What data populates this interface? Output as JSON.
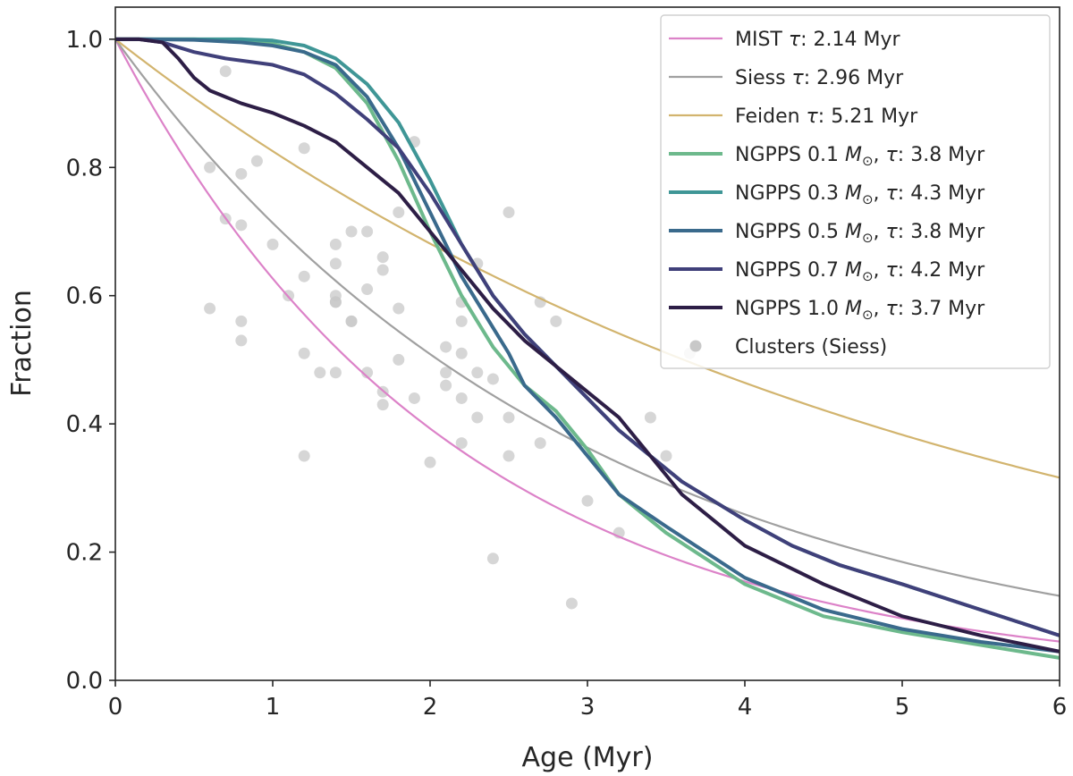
{
  "chart_data": {
    "type": "line",
    "title": "",
    "xlabel": "Age (Myr)",
    "ylabel": "Fraction",
    "xlim": [
      0,
      6
    ],
    "ylim": [
      0,
      1.05
    ],
    "xticks": [
      "0",
      "1",
      "2",
      "3",
      "4",
      "5",
      "6"
    ],
    "yticks": [
      "0.0",
      "0.2",
      "0.4",
      "0.6",
      "0.8",
      "1.0"
    ],
    "legend_position": "top-right",
    "series": [
      {
        "name": "MIST",
        "label": "MIST τ: 2.14 Myr",
        "legend_prefix": "MIST ",
        "legend_suffix": ": 2.14 Myr",
        "kind": "exponential",
        "tau": 2.14,
        "color": "#dc82c8",
        "width": "thin"
      },
      {
        "name": "Siess",
        "label": "Siess τ: 2.96 Myr",
        "legend_prefix": "Siess ",
        "legend_suffix": ": 2.96 Myr",
        "kind": "exponential",
        "tau": 2.96,
        "color": "#a0a0a0",
        "width": "thin"
      },
      {
        "name": "Feiden",
        "label": "Feiden τ: 5.21 Myr",
        "legend_prefix": "Feiden ",
        "legend_suffix": ": 5.21 Myr",
        "kind": "exponential",
        "tau": 5.21,
        "color": "#d2b46e",
        "width": "thin"
      },
      {
        "name": "NGPPS 0.1",
        "label": "NGPPS 0.1 M⊙, τ: 3.8 Myr",
        "legend_prefix": "NGPPS 0.1 ",
        "legend_suffix": ": 3.8 Myr",
        "kind": "sampled",
        "color": "#6db98c",
        "width": "thick",
        "x": [
          0,
          0.2,
          0.5,
          0.8,
          1.0,
          1.2,
          1.4,
          1.6,
          1.8,
          2.0,
          2.1,
          2.2,
          2.3,
          2.4,
          2.5,
          2.6,
          2.7,
          2.8,
          3.0,
          3.2,
          3.5,
          4.0,
          4.5,
          5.0,
          5.5,
          6.0
        ],
        "y": [
          1.0,
          1.0,
          1.0,
          0.998,
          0.993,
          0.98,
          0.955,
          0.9,
          0.81,
          0.7,
          0.65,
          0.6,
          0.56,
          0.52,
          0.49,
          0.46,
          0.44,
          0.42,
          0.36,
          0.29,
          0.23,
          0.15,
          0.1,
          0.075,
          0.055,
          0.035
        ]
      },
      {
        "name": "NGPPS 0.3",
        "label": "NGPPS 0.3 M⊙, τ: 4.3 Myr",
        "legend_prefix": "NGPPS 0.3 ",
        "legend_suffix": ": 4.3 Myr",
        "kind": "sampled",
        "color": "#3f9696",
        "width": "thick",
        "x": [
          0,
          0.2,
          0.5,
          0.8,
          1.0,
          1.2,
          1.4,
          1.6,
          1.8,
          2.0,
          2.2,
          2.4,
          2.6,
          2.8,
          3.0,
          3.2,
          3.4,
          3.6,
          3.8,
          4.0,
          4.3,
          4.6,
          5.0,
          5.5,
          6.0
        ],
        "y": [
          1.0,
          1.0,
          1.0,
          1.0,
          0.998,
          0.99,
          0.97,
          0.93,
          0.87,
          0.78,
          0.68,
          0.6,
          0.54,
          0.49,
          0.44,
          0.39,
          0.35,
          0.31,
          0.28,
          0.25,
          0.21,
          0.18,
          0.15,
          0.11,
          0.07
        ]
      },
      {
        "name": "NGPPS 0.5",
        "label": "NGPPS 0.5 M⊙, τ: 3.8 Myr",
        "legend_prefix": "NGPPS 0.5 ",
        "legend_suffix": ": 3.8 Myr",
        "kind": "sampled",
        "color": "#3a6a8c",
        "width": "thick",
        "x": [
          0,
          0.2,
          0.5,
          0.8,
          1.0,
          1.2,
          1.4,
          1.6,
          1.8,
          2.0,
          2.2,
          2.4,
          2.5,
          2.6,
          2.8,
          3.0,
          3.2,
          3.5,
          4.0,
          4.5,
          5.0,
          5.5,
          6.0
        ],
        "y": [
          1.0,
          1.0,
          0.999,
          0.995,
          0.99,
          0.98,
          0.96,
          0.91,
          0.83,
          0.73,
          0.63,
          0.55,
          0.51,
          0.46,
          0.41,
          0.35,
          0.29,
          0.24,
          0.16,
          0.11,
          0.08,
          0.06,
          0.045
        ]
      },
      {
        "name": "NGPPS 0.7",
        "label": "NGPPS 0.7 M⊙, τ: 4.2 Myr",
        "legend_prefix": "NGPPS 0.7 ",
        "legend_suffix": ": 4.2 Myr",
        "kind": "sampled",
        "color": "#40407a",
        "width": "thick",
        "x": [
          0,
          0.15,
          0.3,
          0.5,
          0.7,
          1.0,
          1.2,
          1.4,
          1.6,
          1.8,
          2.0,
          2.2,
          2.4,
          2.6,
          2.8,
          3.0,
          3.2,
          3.4,
          3.6,
          3.8,
          4.0,
          4.3,
          4.6,
          5.0,
          5.5,
          6.0
        ],
        "y": [
          1.0,
          1.0,
          0.995,
          0.98,
          0.97,
          0.96,
          0.945,
          0.915,
          0.875,
          0.83,
          0.76,
          0.68,
          0.6,
          0.54,
          0.49,
          0.44,
          0.39,
          0.35,
          0.31,
          0.28,
          0.25,
          0.21,
          0.18,
          0.15,
          0.11,
          0.07
        ]
      },
      {
        "name": "NGPPS 1.0",
        "label": "NGPPS 1.0 M⊙, τ: 3.7 Myr",
        "legend_prefix": "NGPPS 1.0 ",
        "legend_suffix": ": 3.7 Myr",
        "kind": "sampled",
        "color": "#2d1e46",
        "width": "thick",
        "x": [
          0,
          0.15,
          0.3,
          0.4,
          0.5,
          0.6,
          0.8,
          1.0,
          1.2,
          1.4,
          1.6,
          1.8,
          2.0,
          2.2,
          2.4,
          2.6,
          2.8,
          3.0,
          3.2,
          3.4,
          3.6,
          3.8,
          4.0,
          4.5,
          5.0,
          5.5,
          6.0
        ],
        "y": [
          1.0,
          1.0,
          0.995,
          0.97,
          0.94,
          0.92,
          0.9,
          0.885,
          0.865,
          0.84,
          0.8,
          0.76,
          0.7,
          0.64,
          0.58,
          0.53,
          0.49,
          0.45,
          0.41,
          0.35,
          0.29,
          0.25,
          0.21,
          0.15,
          0.1,
          0.07,
          0.045
        ]
      }
    ],
    "scatter": {
      "name": "Clusters (Siess)",
      "label": "Clusters (Siess)",
      "color": "#c8c8c8",
      "x": [
        0.6,
        0.6,
        0.7,
        0.7,
        0.8,
        0.8,
        0.8,
        0.8,
        0.9,
        1.0,
        1.1,
        1.2,
        1.2,
        1.2,
        1.2,
        1.3,
        1.4,
        1.4,
        1.4,
        1.4,
        1.4,
        1.4,
        1.5,
        1.5,
        1.5,
        1.6,
        1.6,
        1.6,
        1.7,
        1.7,
        1.7,
        1.7,
        1.8,
        1.8,
        1.8,
        1.9,
        1.9,
        2.0,
        2.1,
        2.1,
        2.1,
        2.2,
        2.2,
        2.2,
        2.2,
        2.2,
        2.3,
        2.3,
        2.3,
        2.4,
        2.4,
        2.5,
        2.5,
        2.5,
        2.7,
        2.7,
        2.8,
        2.9,
        3.0,
        3.2,
        3.4,
        3.5,
        3.65
      ],
      "y": [
        0.8,
        0.58,
        0.95,
        0.72,
        0.79,
        0.71,
        0.56,
        0.53,
        0.81,
        0.68,
        0.6,
        0.83,
        0.63,
        0.51,
        0.35,
        0.48,
        0.68,
        0.65,
        0.6,
        0.59,
        0.48,
        0.59,
        0.7,
        0.56,
        0.56,
        0.7,
        0.61,
        0.48,
        0.66,
        0.64,
        0.45,
        0.43,
        0.73,
        0.58,
        0.5,
        0.84,
        0.44,
        0.34,
        0.52,
        0.48,
        0.46,
        0.59,
        0.56,
        0.51,
        0.44,
        0.37,
        0.65,
        0.48,
        0.41,
        0.47,
        0.19,
        0.73,
        0.41,
        0.35,
        0.59,
        0.37,
        0.56,
        0.12,
        0.28,
        0.23,
        0.41,
        0.35,
        0.51
      ]
    }
  }
}
